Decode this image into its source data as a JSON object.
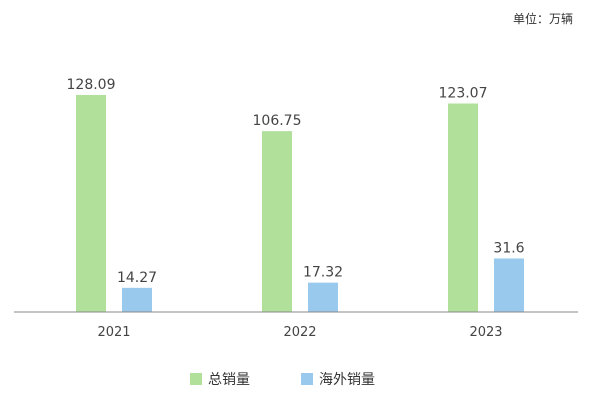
{
  "chart_data": {
    "type": "bar",
    "unit_label": "单位：万辆",
    "categories": [
      "2021",
      "2022",
      "2023"
    ],
    "series": [
      {
        "name": "总销量",
        "values": [
          128.09,
          106.75,
          123.07
        ],
        "value_labels": [
          "128.09",
          "106.75",
          "123.07"
        ],
        "color": "#b1e09a"
      },
      {
        "name": "海外销量",
        "values": [
          14.27,
          17.32,
          31.6
        ],
        "value_labels": [
          "14.27",
          "17.32",
          "31.6"
        ],
        "color": "#99c9ec"
      }
    ],
    "ylim": [
      0,
      128.09
    ],
    "grid": false,
    "legend_position": "bottom",
    "axis_color": "#888888"
  }
}
